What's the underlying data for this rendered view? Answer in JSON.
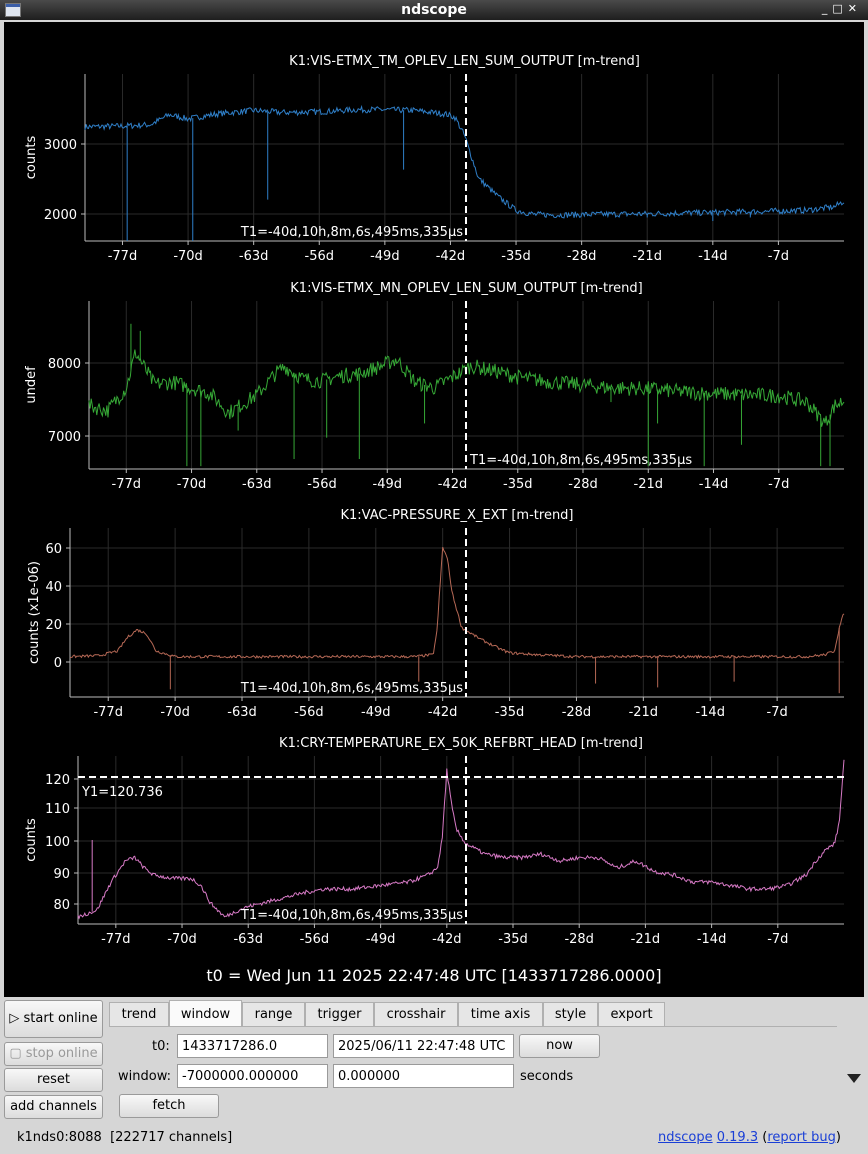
{
  "window": {
    "title": "ndscope"
  },
  "plots": {
    "t0_label": "t0 = Wed Jun 11 2025 22:47:48 UTC [1433717286.0000]",
    "x_ticks": [
      "-77d",
      "-70d",
      "-63d",
      "-56d",
      "-49d",
      "-42d",
      "-35d",
      "-28d",
      "-21d",
      "-14d",
      "-7d"
    ],
    "cursor_t1": "T1=-40d,10h,8m,6s,495ms,335µs",
    "cursor_y1": "Y1=120.736"
  },
  "chart_data": [
    {
      "type": "line",
      "title": "K1:VIS-ETMX_TM_OPLEV_LEN_SUM_OUTPUT [m-trend]",
      "ylabel": "counts",
      "yticks": [
        "3000",
        "2000"
      ],
      "ylim": [
        1620,
        3960
      ],
      "xlim": [
        -81,
        0
      ],
      "color": "#2f7fc8",
      "x": [
        -81,
        -77,
        -74,
        -72,
        -70,
        -67,
        -63,
        -60,
        -56,
        -52,
        -49,
        -46,
        -42.5,
        -41.5,
        -40.5,
        -39,
        -37,
        -35,
        -33,
        -30,
        -28,
        -25,
        -21,
        -18,
        -14,
        -10,
        -7,
        -4,
        -1,
        0
      ],
      "y": [
        3220,
        3230,
        3250,
        3390,
        3330,
        3400,
        3450,
        3420,
        3430,
        3460,
        3460,
        3450,
        3400,
        3350,
        3100,
        2500,
        2250,
        2050,
        1990,
        1985,
        1990,
        1995,
        2000,
        2010,
        2020,
        2030,
        2040,
        2050,
        2100,
        2180
      ],
      "spikes": [
        [
          -76.5,
          1620
        ],
        [
          -69.5,
          1620
        ],
        [
          -61.5,
          2200
        ],
        [
          -47,
          2620
        ],
        [
          -21,
          1950
        ],
        [
          -14,
          1900
        ],
        [
          -10,
          1950
        ]
      ]
    },
    {
      "type": "line",
      "title": "K1:VIS-ETMX_MN_OPLEV_LEN_SUM_OUTPUT [m-trend]",
      "ylabel": "undef",
      "yticks": [
        "8000",
        "7000"
      ],
      "ylim": [
        6560,
        8920
      ],
      "xlim": [
        -81,
        0
      ],
      "color": "#36a836",
      "x": [
        -81,
        -79,
        -77,
        -76,
        -74,
        -72,
        -70,
        -68,
        -66,
        -63,
        -61,
        -60,
        -58,
        -56,
        -54,
        -52,
        -50,
        -48,
        -46,
        -44,
        -42,
        -40,
        -37,
        -35,
        -32,
        -28,
        -25,
        -21,
        -18,
        -14,
        -10,
        -7,
        -4,
        -2,
        -1,
        0
      ],
      "y": [
        7450,
        7380,
        7700,
        8200,
        7750,
        7780,
        7700,
        7620,
        7350,
        7600,
        7900,
        8000,
        7820,
        7800,
        7870,
        7900,
        7990,
        8100,
        7780,
        7700,
        7850,
        8010,
        7920,
        7850,
        7790,
        7740,
        7700,
        7690,
        7650,
        7620,
        7600,
        7590,
        7500,
        7200,
        7450,
        7520
      ],
      "spikes": [
        [
          -76.5,
          8600
        ],
        [
          -75.5,
          8500
        ],
        [
          -70.5,
          6600
        ],
        [
          -69,
          6600
        ],
        [
          -65,
          7100
        ],
        [
          -59,
          6700
        ],
        [
          -55.5,
          7000
        ],
        [
          -52,
          6700
        ],
        [
          -45,
          7200
        ],
        [
          -25,
          7500
        ],
        [
          -21,
          6600
        ],
        [
          -20,
          7200
        ],
        [
          -15,
          6600
        ],
        [
          -11,
          6900
        ],
        [
          -2.5,
          6600
        ],
        [
          -1.5,
          6600
        ]
      ]
    },
    {
      "type": "line",
      "title": "K1:VAC-PRESSURE_X_EXT [m-trend]",
      "ylabel": "counts (x1e-06)",
      "yticks": [
        "60",
        "40",
        "20",
        "0"
      ],
      "ylim": [
        -14,
        74
      ],
      "xlim": [
        -81,
        0
      ],
      "color": "#b56855",
      "x": [
        -81,
        -78,
        -76,
        -75,
        -74,
        -73,
        -72,
        -70,
        -65,
        -60,
        -55,
        -50,
        -45,
        -43,
        -42.6,
        -42,
        -41.5,
        -41,
        -40,
        -38,
        -36,
        -35,
        -32,
        -28,
        -25,
        -21,
        -18,
        -14,
        -10,
        -7,
        -4,
        -2,
        -1,
        -0.5,
        0
      ],
      "y": [
        7,
        7.5,
        10,
        17,
        21,
        19,
        10,
        7,
        7,
        7,
        7,
        7,
        7,
        8,
        20,
        64,
        58,
        40,
        22,
        16,
        11,
        9,
        8,
        7,
        7,
        7,
        7,
        7,
        7,
        7,
        7,
        8,
        10,
        22,
        30
      ],
      "spikes": [
        [
          -70.5,
          -10
        ],
        [
          -44.5,
          -6
        ],
        [
          -26,
          -7
        ],
        [
          -19.5,
          -9
        ],
        [
          -11.5,
          -6
        ],
        [
          -0.5,
          -12
        ]
      ]
    },
    {
      "type": "line",
      "title": "K1:CRY-TEMPERATURE_EX_50K_REFBRT_HEAD [m-trend]",
      "ylabel": "counts",
      "yticks": [
        "120",
        "110",
        "100",
        "90",
        "80"
      ],
      "ylim": [
        76,
        124
      ],
      "xlim": [
        -81,
        0
      ],
      "color": "#d77ac6",
      "x": [
        -81,
        -79,
        -77.5,
        -76,
        -75,
        -74,
        -73,
        -71,
        -69,
        -68,
        -67,
        -65.5,
        -64,
        -63,
        -60,
        -57,
        -55,
        -52,
        -49,
        -46,
        -44,
        -43,
        -42.5,
        -42,
        -41.5,
        -41,
        -40,
        -38,
        -36,
        -34,
        -32,
        -30,
        -28,
        -26,
        -24,
        -22,
        -20,
        -18,
        -16,
        -14,
        -12,
        -10,
        -8,
        -6,
        -4,
        -3,
        -2,
        -1,
        -0.5,
        0
      ],
      "y": [
        78,
        80,
        88,
        94,
        95,
        92,
        90,
        89,
        89,
        87,
        82,
        78,
        80,
        81,
        83,
        85,
        86,
        86,
        87,
        88,
        90,
        92,
        100,
        120,
        110,
        103,
        99,
        96,
        95,
        95,
        96,
        94,
        95,
        95,
        92,
        94,
        91,
        90,
        88,
        88,
        87,
        86,
        86,
        87,
        90,
        94,
        97,
        99,
        105,
        123
      ],
      "spikes": [
        [
          -79.5,
          100
        ]
      ]
    }
  ],
  "sidebar": {
    "start_online": "start online",
    "stop_online": "stop online",
    "reset": "reset",
    "add_channels": "add channels"
  },
  "tabs": [
    "trend",
    "window",
    "range",
    "trigger",
    "crosshair",
    "time axis",
    "style",
    "export"
  ],
  "window_tab": {
    "t0_label": "t0:",
    "t0_gps": "1433717286.0",
    "t0_utc": "2025/06/11 22:47:48 UTC",
    "now_button": "now",
    "window_label": "window:",
    "window_start": "-7000000.000000",
    "window_end": "0.000000",
    "units": "seconds",
    "fetch_button": "fetch"
  },
  "status": {
    "server": "k1nds0:8088",
    "channels": "[222717 channels]"
  },
  "footer": {
    "app": "ndscope",
    "version": "0.19.3",
    "report": "report bug",
    "open_paren": " (",
    "close_paren": ")"
  }
}
